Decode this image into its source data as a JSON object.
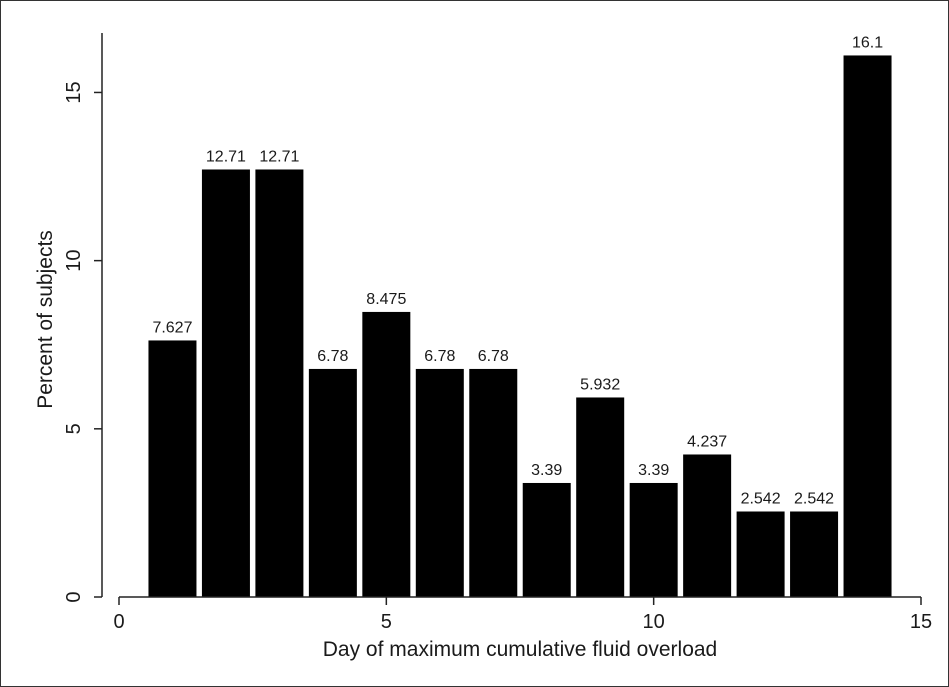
{
  "chart_data": {
    "type": "bar",
    "title": "",
    "xlabel": "Day of maximum cumulative fluid overload",
    "ylabel": "Percent of subjects",
    "xlim": [
      0,
      15
    ],
    "ylim": [
      0,
      16.5
    ],
    "xticks": [
      0,
      5,
      10,
      15
    ],
    "yticks": [
      0,
      5,
      10,
      15
    ],
    "x": [
      1,
      2,
      3,
      4,
      5,
      6,
      7,
      8,
      9,
      10,
      11,
      12,
      13,
      14
    ],
    "values": [
      7.627,
      12.71,
      12.71,
      6.78,
      8.475,
      6.78,
      6.78,
      3.39,
      5.932,
      3.39,
      4.237,
      2.542,
      2.542,
      16.1
    ],
    "value_labels": [
      "7.627",
      "12.71",
      "12.71",
      "6.78",
      "8.475",
      "6.78",
      "6.78",
      "3.39",
      "5.932",
      "3.39",
      "4.237",
      "2.542",
      "2.542",
      "16.1"
    ],
    "bar_color": "#000000",
    "grid": false,
    "legend": "none"
  }
}
